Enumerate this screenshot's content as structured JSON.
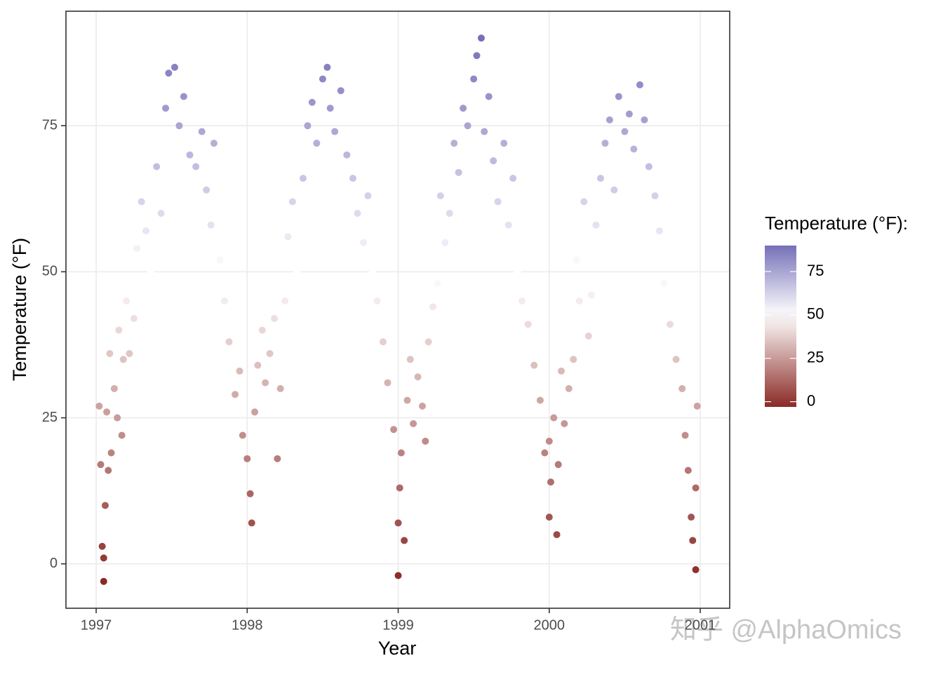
{
  "chart_data": {
    "type": "scatter",
    "x_label": "Year",
    "y_label": "Temperature (°F)",
    "xlim": [
      1996.8,
      2001.195
    ],
    "xticks": [
      1997,
      1998,
      1999,
      2000,
      2001
    ],
    "ylim": [
      -7.6,
      94.6
    ],
    "yticks": [
      0,
      25,
      50,
      75
    ],
    "grid": true,
    "x": [
      1997.02,
      1997.03,
      1997.04,
      1997.05,
      1997.05,
      1997.06,
      1997.07,
      1997.08,
      1997.09,
      1997.1,
      1997.12,
      1997.14,
      1997.15,
      1997.17,
      1997.18,
      1997.2,
      1997.22,
      1997.25,
      1997.27,
      1997.3,
      1997.33,
      1997.36,
      1997.4,
      1997.43,
      1997.46,
      1997.48,
      1997.52,
      1997.55,
      1997.58,
      1997.62,
      1997.66,
      1997.7,
      1997.73,
      1997.76,
      1997.78,
      1997.82,
      1997.85,
      1997.88,
      1997.92,
      1997.95,
      1997.97,
      1998.0,
      1998.02,
      1998.03,
      1998.05,
      1998.07,
      1998.1,
      1998.12,
      1998.15,
      1998.18,
      1998.2,
      1998.22,
      1998.25,
      1998.27,
      1998.3,
      1998.33,
      1998.37,
      1998.4,
      1998.43,
      1998.46,
      1998.5,
      1998.53,
      1998.55,
      1998.58,
      1998.62,
      1998.66,
      1998.7,
      1998.73,
      1998.77,
      1998.8,
      1998.83,
      1998.86,
      1998.9,
      1998.93,
      1998.97,
      1999.0,
      1999.0,
      1999.01,
      1999.02,
      1999.04,
      1999.06,
      1999.08,
      1999.1,
      1999.13,
      1999.16,
      1999.18,
      1999.2,
      1999.23,
      1999.26,
      1999.28,
      1999.31,
      1999.34,
      1999.37,
      1999.4,
      1999.43,
      1999.46,
      1999.5,
      1999.52,
      1999.55,
      1999.57,
      1999.6,
      1999.63,
      1999.66,
      1999.7,
      1999.73,
      1999.76,
      1999.79,
      1999.82,
      1999.86,
      1999.9,
      1999.94,
      1999.97,
      2000.0,
      2000.0,
      2000.01,
      2000.03,
      2000.05,
      2000.06,
      2000.08,
      2000.1,
      2000.13,
      2000.16,
      2000.18,
      2000.2,
      2000.23,
      2000.26,
      2000.28,
      2000.31,
      2000.34,
      2000.37,
      2000.4,
      2000.43,
      2000.46,
      2000.5,
      2000.53,
      2000.56,
      2000.6,
      2000.63,
      2000.66,
      2000.7,
      2000.73,
      2000.76,
      2000.8,
      2000.84,
      2000.88,
      2000.9,
      2000.92,
      2000.94,
      2000.95,
      2000.97,
      2000.98,
      2000.97
    ],
    "values": [
      27,
      17,
      3,
      -3,
      1,
      10,
      26,
      16,
      36,
      19,
      30,
      25,
      40,
      22,
      35,
      45,
      36,
      42,
      54,
      62,
      57,
      50,
      68,
      60,
      78,
      84,
      85,
      75,
      80,
      70,
      68,
      74,
      64,
      58,
      72,
      52,
      45,
      38,
      29,
      33,
      22,
      18,
      12,
      7,
      26,
      34,
      40,
      31,
      36,
      42,
      18,
      30,
      45,
      56,
      62,
      50,
      66,
      75,
      79,
      72,
      83,
      85,
      78,
      74,
      81,
      70,
      66,
      60,
      55,
      63,
      50,
      45,
      38,
      31,
      23,
      -2,
      7,
      13,
      19,
      4,
      28,
      35,
      24,
      32,
      27,
      21,
      38,
      44,
      48,
      63,
      55,
      60,
      72,
      67,
      78,
      75,
      83,
      87,
      90,
      74,
      80,
      69,
      62,
      72,
      58,
      66,
      50,
      45,
      41,
      34,
      28,
      19,
      21,
      8,
      14,
      25,
      5,
      17,
      33,
      24,
      30,
      35,
      52,
      45,
      62,
      39,
      46,
      58,
      66,
      72,
      76,
      64,
      80,
      74,
      77,
      71,
      82,
      76,
      68,
      63,
      57,
      48,
      41,
      35,
      30,
      22,
      16,
      8,
      4,
      -1,
      27,
      13
    ],
    "color_scale": {
      "title": "Temperature (°F):",
      "low": "#8a2a26",
      "mid": "#ffffff",
      "high": "#7570b8",
      "midpoint": 50,
      "limits": [
        -3,
        90
      ],
      "ticks": [
        0,
        25,
        50,
        75
      ]
    },
    "watermark": "知乎 @AlphaOmics"
  }
}
